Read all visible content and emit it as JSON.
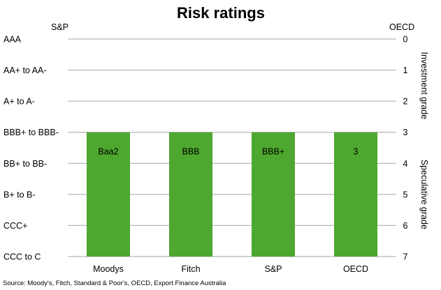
{
  "chart_data": {
    "type": "bar",
    "title": "Risk ratings",
    "left_axis_title": "S&P",
    "right_axis_title": "OECD",
    "left_tick_labels": [
      "AAA",
      "AA+ to AA-",
      "A+ to A-",
      "BBB+ to BBB-",
      "BB+ to BB-",
      "B+ to B-",
      "CCC+",
      "CCC to C"
    ],
    "right_ticks": [
      0,
      1,
      2,
      3,
      4,
      5,
      6,
      7
    ],
    "ylim": [
      0,
      7
    ],
    "y_inverted": true,
    "categories": [
      "Moodys",
      "Fitch",
      "S&P",
      "OECD"
    ],
    "values": [
      3,
      3,
      3,
      3
    ],
    "bar_base": 7,
    "data_labels": [
      "Baa2",
      "BBB",
      "BBB+",
      "3"
    ],
    "annotations": [
      {
        "text": "Investment grade",
        "range": [
          0,
          3
        ]
      },
      {
        "text": "Speculative grade",
        "range": [
          3,
          7
        ]
      }
    ],
    "bar_color": "#4ea72e",
    "grid": true,
    "source": "Source: Moody's, Fitch, Standard & Poor's, OECD, Export Finance Australia"
  }
}
